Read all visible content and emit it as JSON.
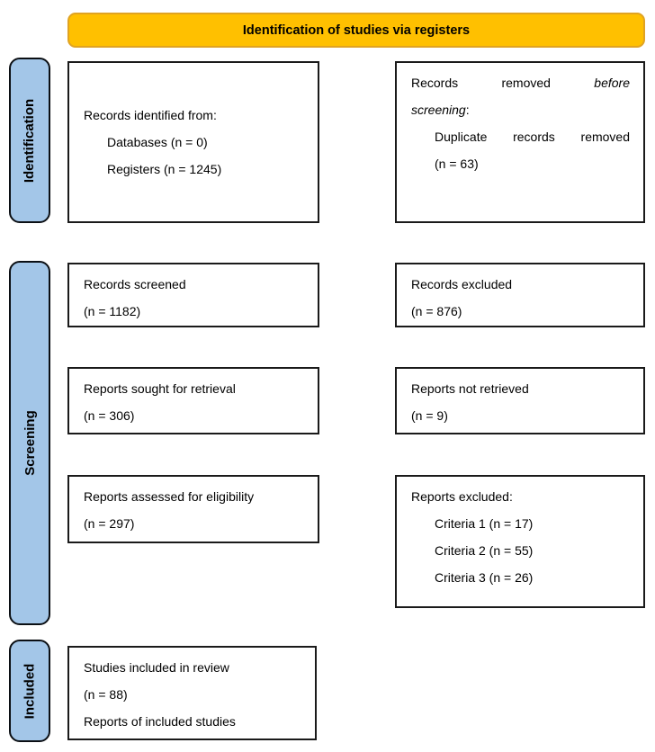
{
  "colors": {
    "title_bg": "#FFC000",
    "title_border": "#E0A322",
    "sidebar_bg": "#A3C6E8",
    "sidebar_border": "#0B0F14",
    "box_border": "#1A1A1A"
  },
  "title": "Identification of studies via registers",
  "sidebar": {
    "identification": "Identification",
    "screening": "Screening",
    "included": "Included"
  },
  "identification": {
    "records_identified": {
      "title": "Records identified from:",
      "items": [
        "Databases (n = 0)",
        "Registers (n = 1245)"
      ]
    },
    "records_removed": {
      "l1w1": "Records",
      "l1w2": "removed",
      "l1w3": "before",
      "l2_italic": "screening",
      "l2_colon": ":",
      "l3w1": "Duplicate",
      "l3w2": "records",
      "l3w3": "removed",
      "l4": "(n = 63)"
    }
  },
  "screening": {
    "records_screened": {
      "l1": "Records screened",
      "l2": "(n = 1182)"
    },
    "records_excluded": {
      "l1": "Records excluded",
      "l2": "(n = 876)"
    },
    "reports_sought": {
      "l1": "Reports sought for retrieval",
      "l2": "(n = 306)"
    },
    "reports_not_retrieved": {
      "l1": "Reports not retrieved",
      "l2": "(n = 9)"
    },
    "reports_assessed": {
      "l1": "Reports assessed for eligibility",
      "l2": "(n = 297)"
    },
    "reports_excluded": {
      "title": "Reports excluded:",
      "items": [
        "Criteria 1 (n = 17)",
        "Criteria 2 (n = 55)",
        "Criteria 3 (n = 26)"
      ]
    }
  },
  "included": {
    "studies_included": {
      "l1": "Studies included in review",
      "l2": "(n = 88)",
      "l3": "Reports of included studies"
    }
  }
}
